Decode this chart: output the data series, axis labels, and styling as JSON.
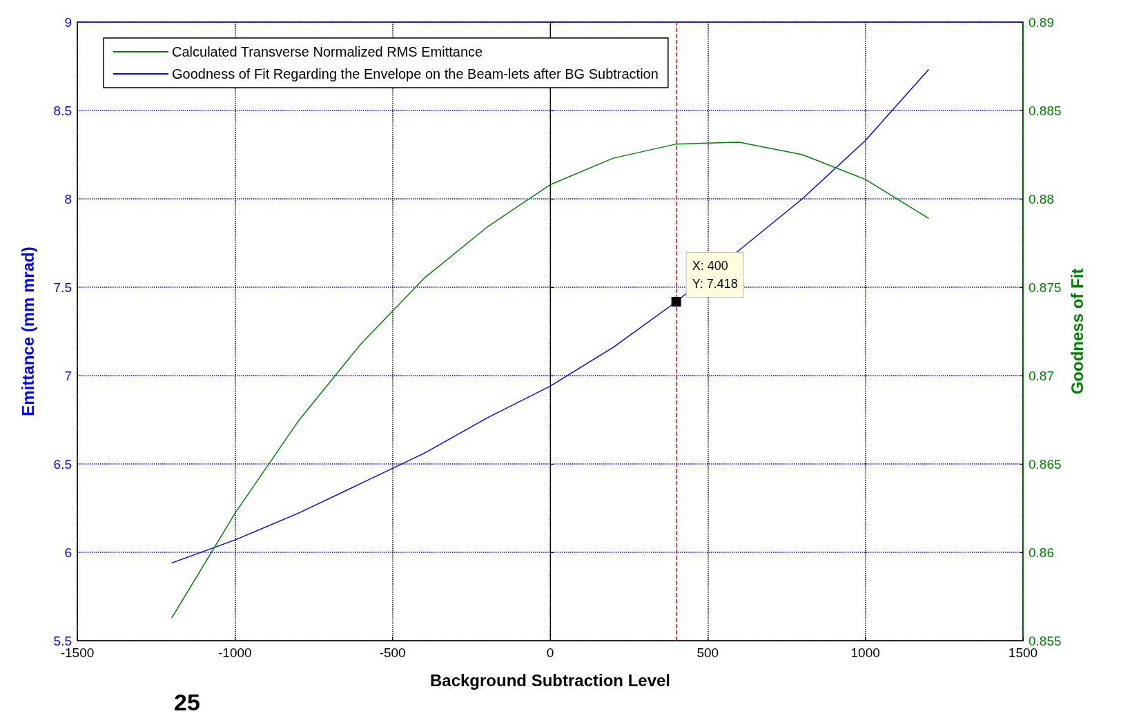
{
  "chart_data": {
    "type": "line",
    "xlabel": "Background Subtraction Level",
    "ylabel": "Emittance (mm mrad)",
    "y2label": "Goodness of Fit",
    "x": [
      -1200,
      -1000,
      -800,
      -600,
      -400,
      -200,
      0,
      200,
      400,
      600,
      800,
      1000,
      1200
    ],
    "series": [
      {
        "name": "Goodness of Fit Regarding the Envelope on the Beam-lets after BG Subtraction",
        "color": "#0000ff",
        "values": [
          5.94,
          6.07,
          6.22,
          6.39,
          6.56,
          6.76,
          6.94,
          7.16,
          7.418,
          7.71,
          8.0,
          8.33,
          8.73
        ]
      },
      {
        "name": "Calculated Transverse Normalized RMS Emittance",
        "color": "#008000",
        "axis": "y2",
        "values": [
          0.8563,
          0.8622,
          0.8674,
          0.8718,
          0.8755,
          0.8784,
          0.8808,
          0.8823,
          0.8831,
          0.8832,
          0.8825,
          0.8811,
          0.8789
        ]
      }
    ],
    "xlim": [
      -1500,
      1500
    ],
    "xticks": [
      -1500,
      -1000,
      -500,
      0,
      500,
      1000,
      1500
    ],
    "ylim": [
      5.5,
      9
    ],
    "yticks": [
      5.5,
      6,
      6.5,
      7,
      7.5,
      8,
      8.5,
      9
    ],
    "y2lim": [
      0.855,
      0.89
    ],
    "y2ticks": [
      0.855,
      0.86,
      0.865,
      0.87,
      0.875,
      0.88,
      0.885,
      0.89
    ],
    "ref_lines": [
      {
        "axis": "x",
        "value": 400,
        "color": "#ff0000",
        "line_style": "dashed"
      }
    ],
    "annotations": [
      {
        "text": "X: 400\nY: 7.418",
        "x": 400,
        "y": 7.418
      },
      "25"
    ],
    "grid": true,
    "legend": "top left",
    "marker": "none",
    "line_style": "solid"
  }
}
